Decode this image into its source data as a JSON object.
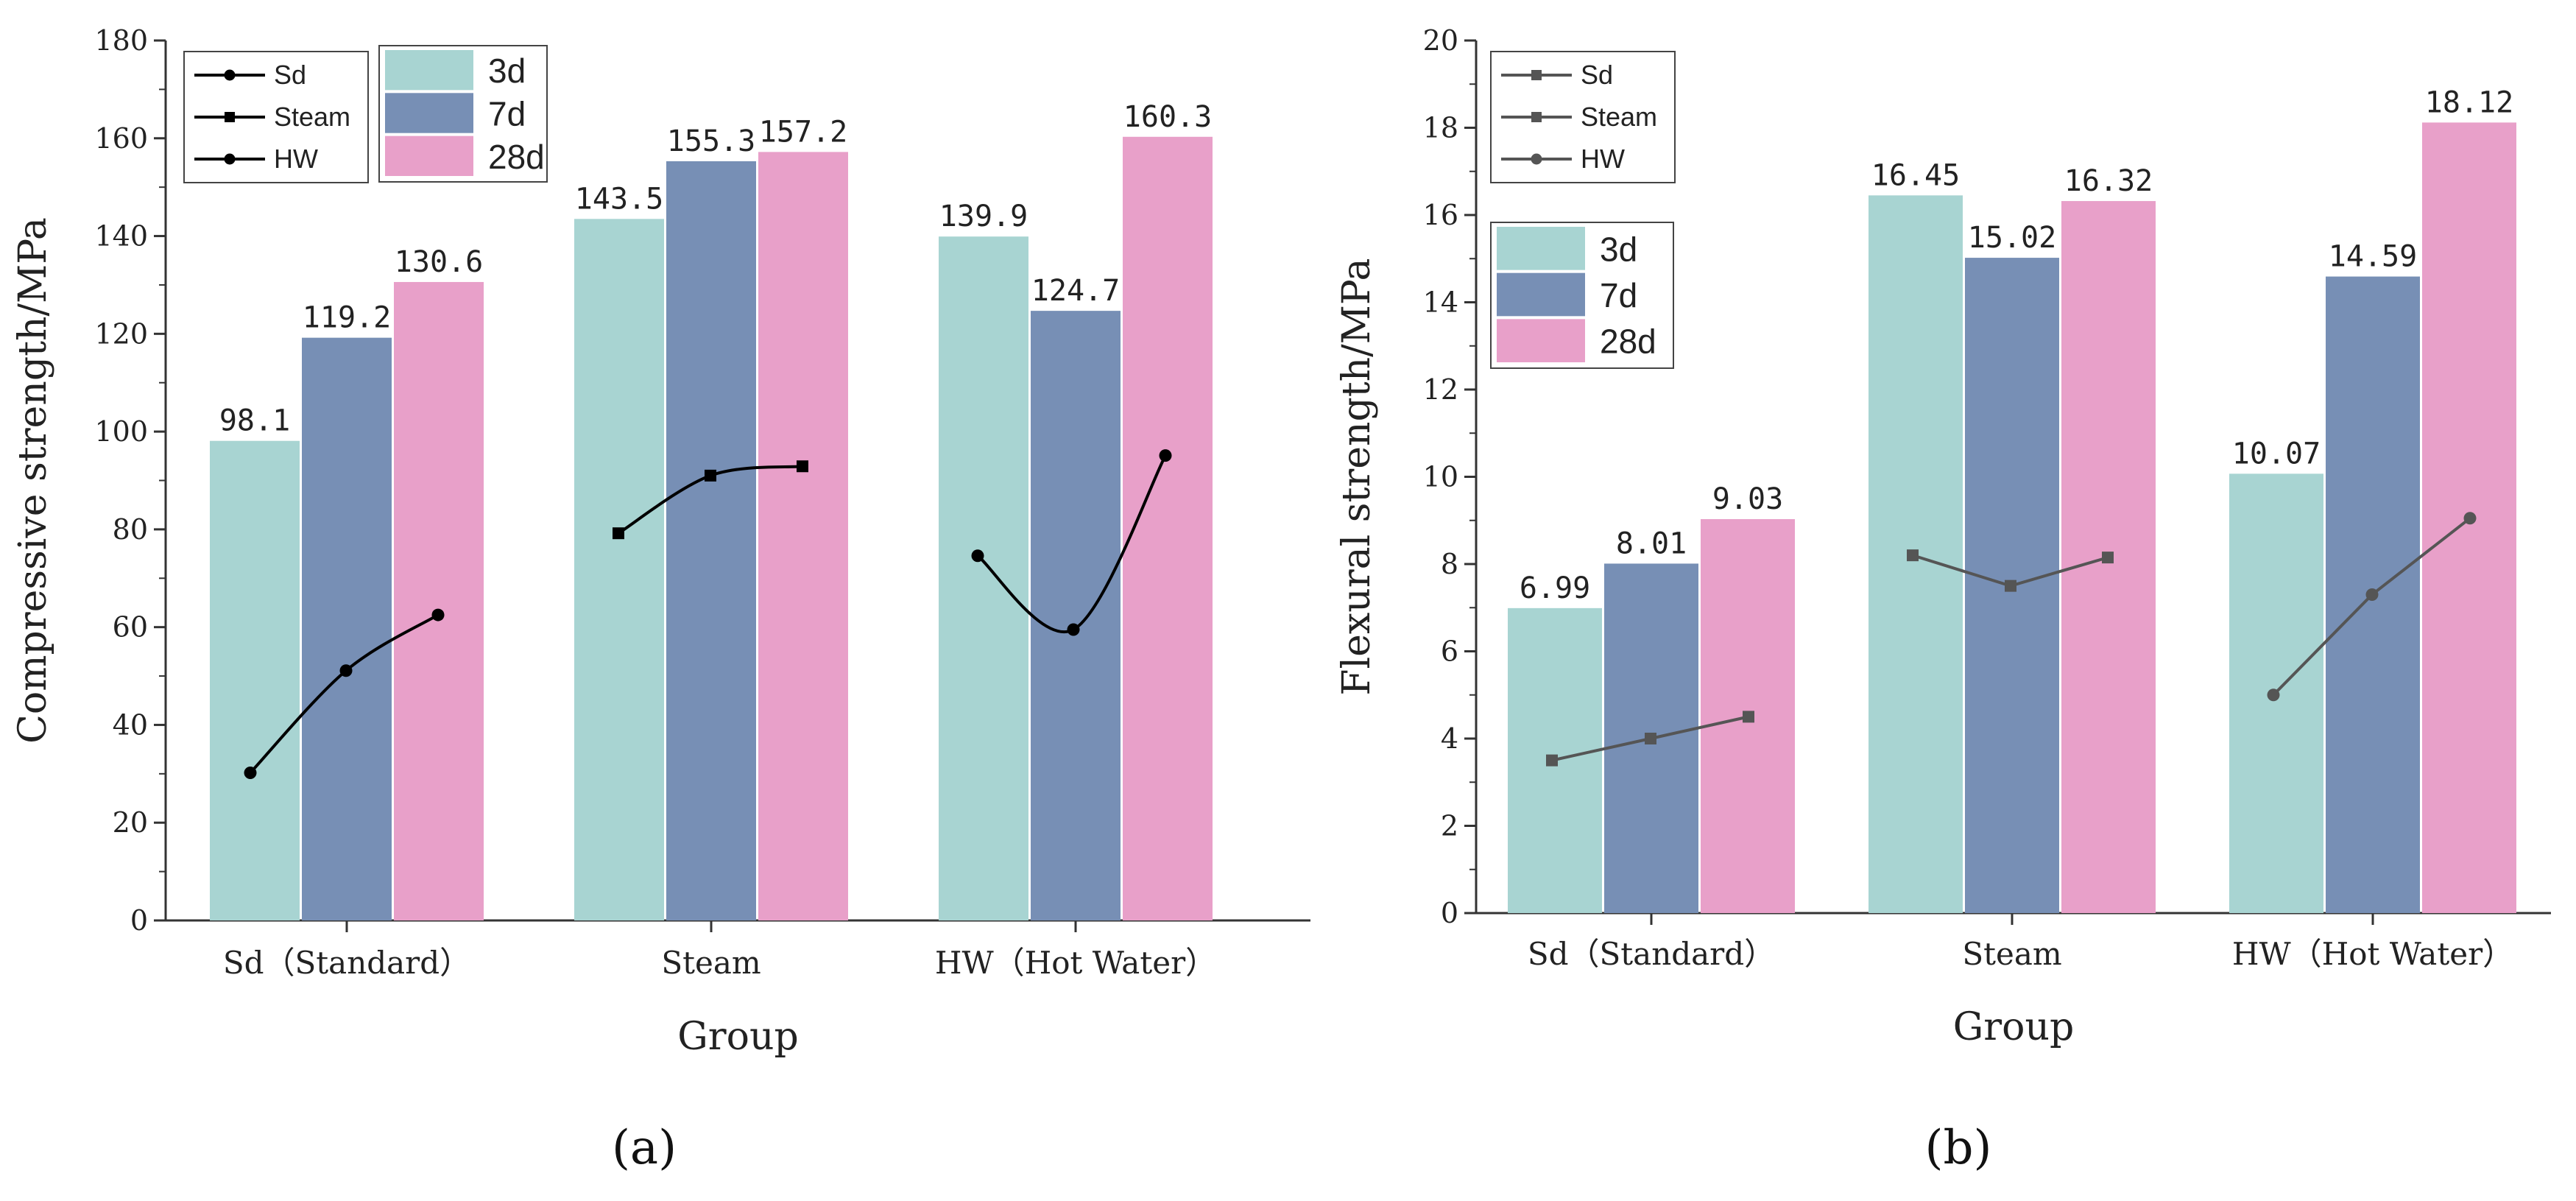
{
  "chart_data": [
    {
      "type": "bar",
      "panel_label": "(a)",
      "categories": [
        "Sd（Standard）",
        "Steam",
        "HW（Hot Water）"
      ],
      "series": [
        {
          "name": "3d",
          "color": "#a8d4d2",
          "values": [
            98.1,
            143.5,
            139.9
          ]
        },
        {
          "name": "7d",
          "color": "#778fb5",
          "values": [
            119.2,
            155.3,
            124.7
          ]
        },
        {
          "name": "28d",
          "color": "#e8a0c9",
          "values": [
            130.6,
            157.2,
            160.3
          ]
        }
      ],
      "line_series": [
        {
          "name": "Sd",
          "marker": "circle",
          "values": [
            30.2,
            51.1,
            62.5
          ]
        },
        {
          "name": "Steam",
          "marker": "square",
          "values": [
            79.2,
            91.0,
            92.9
          ]
        },
        {
          "name": "HW",
          "marker": "circle",
          "values": [
            74.6,
            59.5,
            95.1
          ]
        }
      ],
      "data_labels": [
        [
          "98.1",
          "143.5",
          "139.9"
        ],
        [
          "119.2",
          "155.3",
          "124.7"
        ],
        [
          "130.6",
          "157.2",
          "160.3"
        ]
      ],
      "xlabel": "Group",
      "ylabel": "Compressive strength/MPa",
      "ylim": [
        0,
        180
      ],
      "yticks": [
        0,
        20,
        40,
        60,
        80,
        100,
        120,
        140,
        160,
        180
      ],
      "legend_placement": "top-left",
      "line_color": "#000000"
    },
    {
      "type": "bar",
      "panel_label": "(b)",
      "categories": [
        "Sd（Standard）",
        "Steam",
        "HW（Hot Water）"
      ],
      "series": [
        {
          "name": "3d",
          "color": "#a8d4d2",
          "values": [
            6.99,
            16.45,
            10.07
          ]
        },
        {
          "name": "7d",
          "color": "#778fb5",
          "values": [
            8.01,
            15.02,
            14.59
          ]
        },
        {
          "name": "28d",
          "color": "#e8a0c9",
          "values": [
            9.03,
            16.32,
            18.12
          ]
        }
      ],
      "line_series": [
        {
          "name": "Sd",
          "marker": "square",
          "values": [
            3.5,
            4.0,
            4.5
          ]
        },
        {
          "name": "Steam",
          "marker": "square",
          "values": [
            8.2,
            7.5,
            8.15
          ]
        },
        {
          "name": "HW",
          "marker": "circle",
          "values": [
            5.0,
            7.3,
            9.05
          ]
        }
      ],
      "data_labels": [
        [
          "6.99",
          "16.45",
          "10.07"
        ],
        [
          "8.01",
          "15.02",
          "14.59"
        ],
        [
          "9.03",
          "16.32",
          "18.12"
        ]
      ],
      "xlabel": "Group",
      "ylabel": "Flexural strength/MPa",
      "ylim": [
        0,
        20
      ],
      "yticks": [
        0,
        2,
        4,
        6,
        8,
        10,
        12,
        14,
        16,
        18,
        20
      ],
      "legend_placement": "top-left",
      "line_color": "#555555"
    }
  ]
}
